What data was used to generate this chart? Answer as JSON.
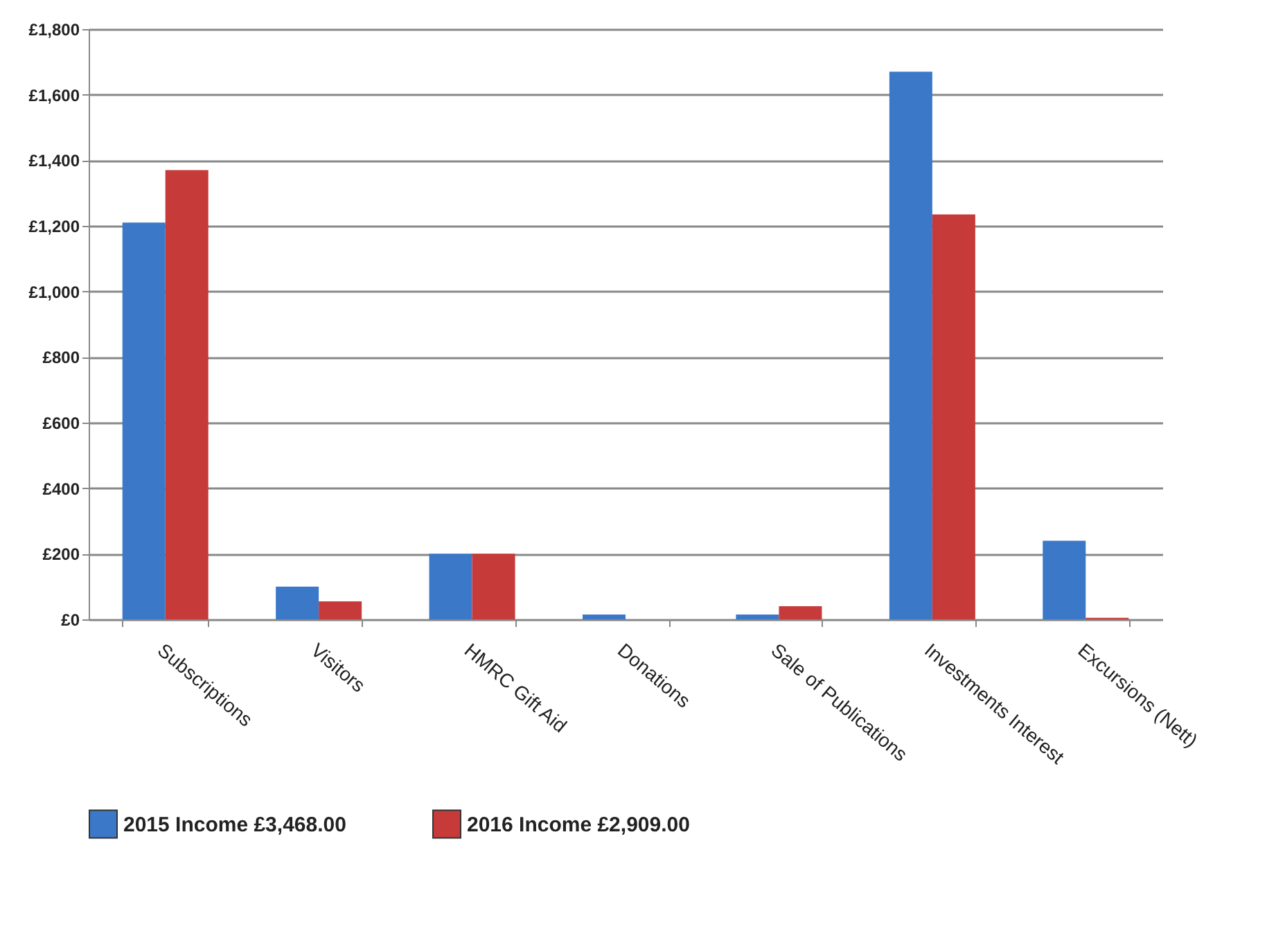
{
  "chart_data": {
    "type": "bar",
    "categories": [
      "Subscriptions",
      "Visitors",
      "HMRC Gift Aid",
      "Donations",
      "Sale of Publications",
      "Investments Interest",
      "Excursions (Nett)"
    ],
    "series": [
      {
        "name": "2015 Income £3,468.00",
        "color": "#3b78c8",
        "values": [
          1210,
          100,
          200,
          15,
          15,
          1670,
          240
        ]
      },
      {
        "name": "2016 Income £2,909.00",
        "color": "#c63a3a",
        "values": [
          1370,
          55,
          200,
          0,
          40,
          1235,
          5
        ]
      }
    ],
    "ylim": [
      0,
      1800
    ],
    "yticks": [
      {
        "value": 0,
        "label": "£0"
      },
      {
        "value": 200,
        "label": "£200"
      },
      {
        "value": 400,
        "label": "£400"
      },
      {
        "value": 600,
        "label": "£600"
      },
      {
        "value": 800,
        "label": "£800"
      },
      {
        "value": 1000,
        "label": "£1,000"
      },
      {
        "value": 1200,
        "label": "£1,200"
      },
      {
        "value": 1400,
        "label": "£1,400"
      },
      {
        "value": 1600,
        "label": "£1,600"
      },
      {
        "value": 1800,
        "label": "£1,800"
      }
    ],
    "grid": "y",
    "legend": "bottom"
  }
}
